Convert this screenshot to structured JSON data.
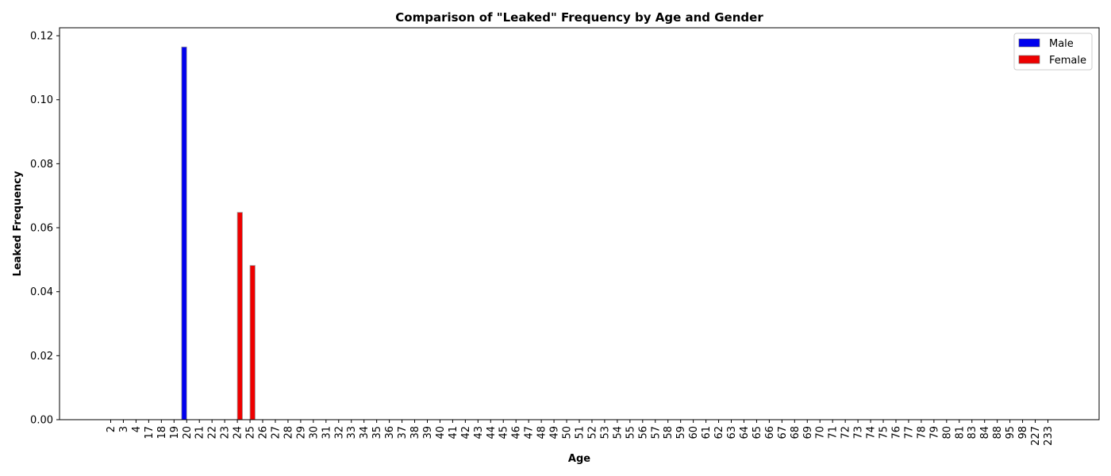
{
  "chart_data": {
    "type": "bar",
    "title": "Comparison of \"Leaked\" Frequency by Age and Gender",
    "xlabel": "Age",
    "ylabel": "Leaked Frequency",
    "ylim": [
      0,
      0.1225
    ],
    "yticks": [
      0.0,
      0.02,
      0.04,
      0.06,
      0.08,
      0.1,
      0.12
    ],
    "ytick_labels": [
      "0.00",
      "0.02",
      "0.04",
      "0.06",
      "0.08",
      "0.10",
      "0.12"
    ],
    "grid": false,
    "legend_position": "top-right",
    "categories": [
      "2",
      "3",
      "4",
      "17",
      "18",
      "19",
      "20",
      "21",
      "22",
      "23",
      "24",
      "25",
      "26",
      "27",
      "28",
      "29",
      "30",
      "31",
      "32",
      "33",
      "34",
      "35",
      "36",
      "37",
      "38",
      "39",
      "40",
      "41",
      "42",
      "43",
      "44",
      "45",
      "46",
      "47",
      "48",
      "49",
      "50",
      "51",
      "52",
      "53",
      "54",
      "55",
      "56",
      "57",
      "58",
      "59",
      "60",
      "61",
      "62",
      "63",
      "64",
      "65",
      "66",
      "67",
      "68",
      "69",
      "70",
      "71",
      "72",
      "73",
      "74",
      "75",
      "76",
      "77",
      "78",
      "79",
      "80",
      "81",
      "83",
      "84",
      "88",
      "95",
      "98",
      "227",
      "233"
    ],
    "series": [
      {
        "name": "Male",
        "color": "#0000ee",
        "values": [
          0,
          0,
          0,
          0,
          0,
          0,
          0.1165,
          0,
          0,
          0,
          0,
          0,
          0,
          0,
          0,
          0,
          0,
          0,
          0,
          0,
          0,
          0,
          0,
          0,
          0,
          0,
          0,
          0,
          0,
          0,
          0,
          0,
          0,
          0,
          0,
          0,
          0,
          0,
          0,
          0,
          0,
          0,
          0,
          0,
          0,
          0,
          0,
          0,
          0,
          0,
          0,
          0,
          0,
          0,
          0,
          0,
          0,
          0,
          0,
          0,
          0,
          0,
          0,
          0,
          0,
          0,
          0,
          0,
          0,
          0,
          0,
          0,
          0,
          0,
          0
        ]
      },
      {
        "name": "Female",
        "color": "#ee0000",
        "values": [
          0,
          0,
          0,
          0,
          0,
          0,
          0,
          0,
          0,
          0,
          0.0648,
          0.0482,
          0,
          0,
          0,
          0,
          0,
          0,
          0,
          0,
          0,
          0,
          0,
          0,
          0,
          0,
          0,
          0,
          0,
          0,
          0,
          0,
          0,
          0,
          0,
          0,
          0,
          0,
          0,
          0,
          0,
          0,
          0,
          0,
          0,
          0,
          0,
          0,
          0,
          0,
          0,
          0,
          0,
          0,
          0,
          0,
          0,
          0,
          0,
          0,
          0,
          0,
          0,
          0,
          0,
          0,
          0,
          0,
          0,
          0,
          0,
          0,
          0,
          0,
          0
        ]
      }
    ]
  }
}
